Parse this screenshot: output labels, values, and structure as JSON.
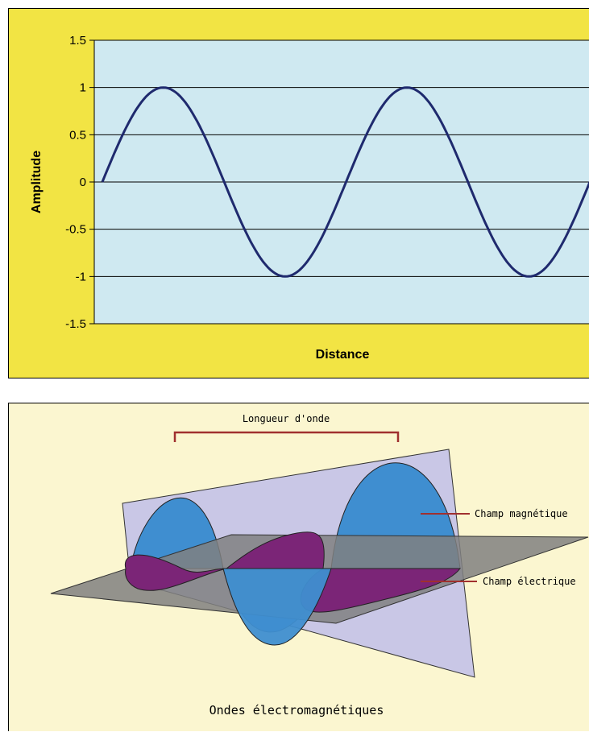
{
  "chart_data": {
    "type": "line",
    "title": "",
    "xlabel": "Distance",
    "ylabel": "Amplitude",
    "ylim": [
      -1.5,
      1.5
    ],
    "yticks": [
      "1.5",
      "1",
      "0.5",
      "0",
      "-0.5",
      "-1",
      "-1.5"
    ],
    "grid": true,
    "series": [
      {
        "function": "sine",
        "amplitude": 1,
        "periods": 2,
        "color": "#1f2a6e"
      }
    ]
  },
  "colors": {
    "chart_frame": "#f2e444",
    "plot_area": "#cfe9f1",
    "diagram_background": "#fbf6d0",
    "magnetic_lobe": "#3f8ed0",
    "electric_lobe": "#7b2577",
    "vertical_plane": "#c9c7e6",
    "horizontal_plane": "#808080",
    "bracket": "#a0302f"
  },
  "diagram": {
    "wavelength_label": "Longueur d'onde",
    "magnetic_field_label": "Champ magnétique",
    "electric_field_label": "Champ électrique",
    "title": "Ondes électromagnétiques"
  }
}
